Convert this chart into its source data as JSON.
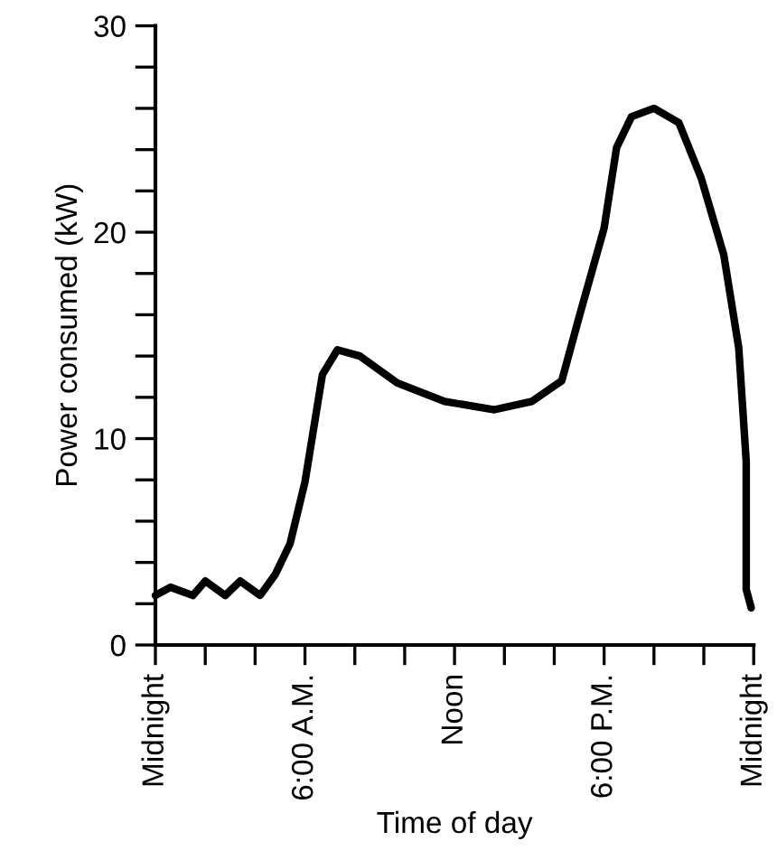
{
  "chart_data": {
    "type": "line",
    "xlabel": "Time of day",
    "ylabel": "Power consumed (kW)",
    "x": [
      0,
      0.6,
      1.5,
      2.0,
      2.8,
      3.4,
      4.2,
      4.8,
      5.4,
      6.0,
      6.7,
      7.3,
      8.2,
      9.7,
      11.6,
      13.6,
      15.1,
      16.3,
      17.0,
      18.0,
      18.5,
      19.1,
      20.0,
      21.0,
      21.9,
      22.8,
      23.4,
      23.7,
      23.7,
      23.9
    ],
    "series": [
      {
        "color": "#000000",
        "values": [
          2.4,
          2.8,
          2.4,
          3.1,
          2.4,
          3.1,
          2.4,
          3.4,
          4.9,
          7.9,
          13.1,
          14.3,
          14.0,
          12.7,
          11.8,
          11.4,
          11.8,
          12.8,
          15.9,
          20.2,
          24.1,
          25.6,
          26.0,
          25.3,
          22.6,
          18.9,
          14.4,
          8.9,
          2.7,
          1.8
        ]
      }
    ],
    "xlim": [
      0,
      24
    ],
    "ylim": [
      0,
      30
    ],
    "xticks": [
      {
        "value": 0,
        "label": "Midnight"
      },
      {
        "value": 2,
        "label": null
      },
      {
        "value": 4,
        "label": null
      },
      {
        "value": 6,
        "label": "6:00 A.M."
      },
      {
        "value": 8,
        "label": null
      },
      {
        "value": 10,
        "label": null
      },
      {
        "value": 12,
        "label": "Noon"
      },
      {
        "value": 14,
        "label": null
      },
      {
        "value": 16,
        "label": null
      },
      {
        "value": 18,
        "label": "6:00 P.M."
      },
      {
        "value": 20,
        "label": null
      },
      {
        "value": 22,
        "label": null
      },
      {
        "value": 24,
        "label": "Midnight"
      }
    ],
    "yticks": [
      0,
      {
        "value": 2,
        "label": null
      },
      {
        "value": 4,
        "label": null
      },
      {
        "value": 6,
        "label": null
      },
      {
        "value": 8,
        "label": null
      },
      10,
      {
        "value": 12,
        "label": null
      },
      {
        "value": 14,
        "label": null
      },
      {
        "value": 16,
        "label": null
      },
      {
        "value": 18,
        "label": null
      },
      20,
      {
        "value": 22,
        "label": null
      },
      {
        "value": 24,
        "label": null
      },
      {
        "value": 26,
        "label": null
      },
      {
        "value": 28,
        "label": null
      },
      30
    ],
    "grid": false,
    "legend": false,
    "marker": "none",
    "line_style": "solid"
  }
}
